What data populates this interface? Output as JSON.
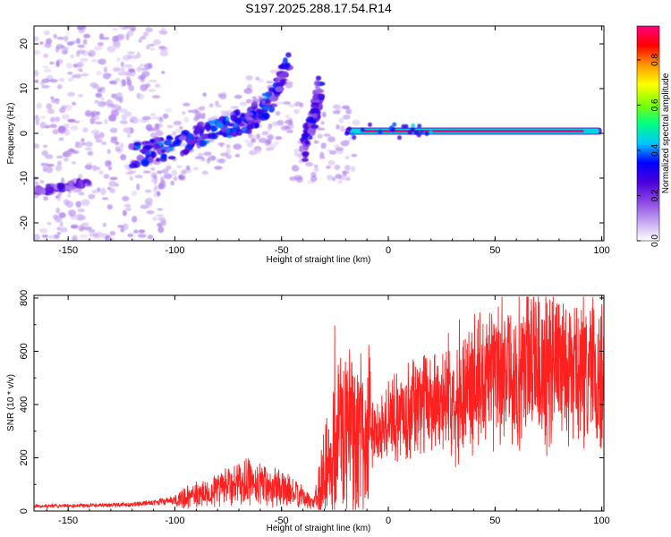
{
  "chart_data": [
    {
      "type": "heatmap",
      "title": "S197.2025.288.17.54.R14",
      "xlabel": "Height of straight line (km)",
      "ylabel": "Frequency (Hz)",
      "xlim": [
        -166,
        101
      ],
      "ylim": [
        -24,
        24
      ],
      "xticks": [
        -150,
        -100,
        -50,
        0,
        50,
        100
      ],
      "yticks": [
        -20,
        -10,
        0,
        10,
        20
      ],
      "colorbar": {
        "label": "Normalized spectral amplitude",
        "range": [
          0,
          0.95
        ],
        "ticks": [
          "0.0",
          "0.2",
          "0.4",
          "0.6",
          "0.8"
        ],
        "colors": [
          "#ffffff",
          "#c4a3f0",
          "#8b46e6",
          "#4b00d9",
          "#0000ff",
          "#00c8ff",
          "#00ff7f",
          "#7fff00",
          "#ffff00",
          "#ff9900",
          "#ff0000",
          "#ff0080"
        ]
      },
      "features": [
        {
          "name": "carrier line",
          "x_range": [
            -20,
            100
          ],
          "frequency": 0.5,
          "amplitude": 0.95
        },
        {
          "name": "rising doppler track A",
          "points": [
            [
              -120,
              -5
            ],
            [
              -100,
              -3
            ],
            [
              -80,
              1
            ],
            [
              -65,
              3
            ],
            [
              -55,
              7
            ],
            [
              -47,
              16
            ]
          ],
          "amplitude": 0.35
        },
        {
          "name": "rising doppler track B",
          "points": [
            [
              -40,
              -4
            ],
            [
              -35,
              3
            ],
            [
              -32,
              10
            ]
          ],
          "amplitude": 0.3
        },
        {
          "name": "low frequency segment",
          "points": [
            [
              -166,
              -13
            ],
            [
              -140,
              -11
            ]
          ],
          "amplitude": 0.25
        },
        {
          "name": "background noise",
          "x_range": [
            -166,
            -105
          ],
          "frequency_range": [
            -24,
            24
          ],
          "amplitude": 0.1
        }
      ]
    },
    {
      "type": "line",
      "xlabel": "Height of straight line (km)",
      "ylabel": "SNR (10 * v/v)",
      "xlim": [
        -166,
        101
      ],
      "ylim": [
        0,
        810
      ],
      "xticks": [
        -150,
        -100,
        -50,
        0,
        50,
        100
      ],
      "yticks": [
        0,
        200,
        400,
        600,
        800
      ],
      "color": "#ff2020",
      "trend": [
        [
          -166,
          18
        ],
        [
          -150,
          20
        ],
        [
          -120,
          25
        ],
        [
          -100,
          40
        ],
        [
          -85,
          70
        ],
        [
          -75,
          95
        ],
        [
          -60,
          110
        ],
        [
          -45,
          70
        ],
        [
          -35,
          30
        ],
        [
          -30,
          150
        ],
        [
          -25,
          250
        ],
        [
          -20,
          300
        ],
        [
          -15,
          260
        ],
        [
          -10,
          280
        ],
        [
          0,
          330
        ],
        [
          10,
          380
        ],
        [
          20,
          420
        ],
        [
          30,
          440
        ],
        [
          40,
          480
        ],
        [
          50,
          500
        ],
        [
          60,
          520
        ],
        [
          70,
          540
        ],
        [
          80,
          530
        ],
        [
          90,
          520
        ],
        [
          100,
          480
        ]
      ]
    }
  ]
}
